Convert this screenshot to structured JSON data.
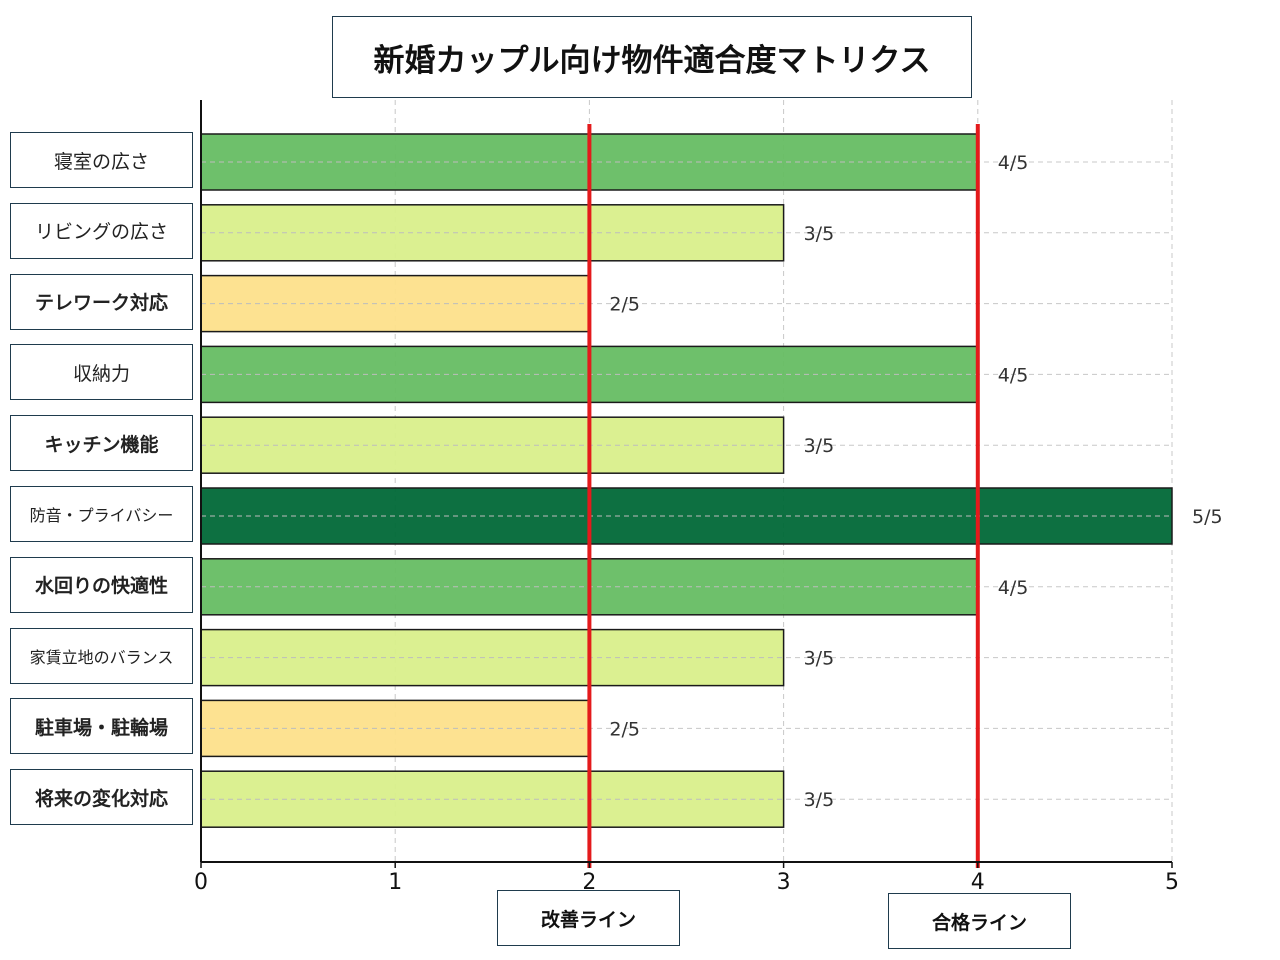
{
  "chart_data": {
    "type": "bar",
    "orientation": "horizontal",
    "title": "新婚カップル向け物件適合度マトリクス",
    "categories": [
      "寝室の広さ",
      "リビングの広さ",
      "テレワーク対応",
      "収納力",
      "キッチン機能",
      "防音・プライバシー",
      "水回りの快適性",
      "家賃立地のバランス",
      "駐車場・駐輪場",
      "将来の変化対応"
    ],
    "values": [
      4,
      3,
      2,
      4,
      3,
      5,
      4,
      3,
      2,
      3
    ],
    "value_labels": [
      "4/5",
      "3/5",
      "2/5",
      "4/5",
      "3/5",
      "5/5",
      "4/5",
      "3/5",
      "2/5",
      "3/5"
    ],
    "xlim": [
      0,
      5
    ],
    "xticks": [
      "0",
      "1",
      "2",
      "3",
      "4",
      "5"
    ],
    "grid": true,
    "bar_colors": {
      "2": "#fde08b",
      "3": "#d9ef8b",
      "4": "#66bd63",
      "5": "#006837"
    },
    "reference_lines": [
      {
        "label": "改善ライン",
        "x": 2,
        "color": "#e41a1c"
      },
      {
        "label": "合格ライン",
        "x": 4,
        "color": "#e41a1c"
      }
    ]
  }
}
